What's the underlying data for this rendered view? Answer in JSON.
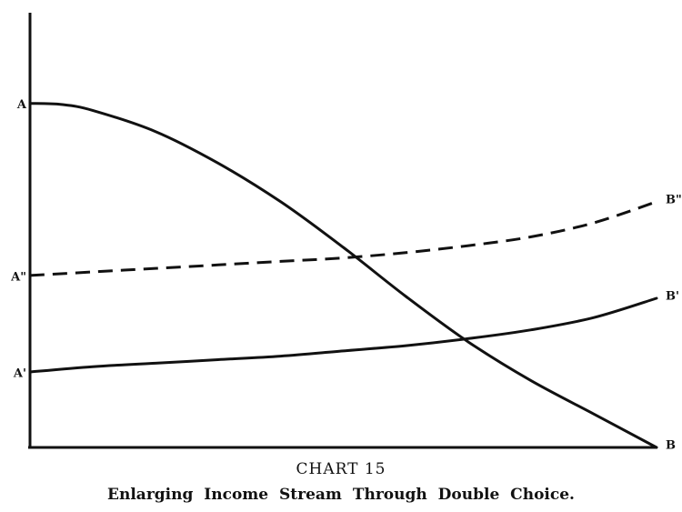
{
  "caption": {
    "number": "CHART 15",
    "title": "Enlarging Income Stream Through Double Choice."
  },
  "chart_data": {
    "type": "line",
    "title": "Enlarging Income Stream Through Double Choice.",
    "xlabel": "",
    "ylabel": "",
    "grid": false,
    "legend": "none",
    "xlim": [
      0,
      1
    ],
    "ylim": [
      0,
      1
    ],
    "series": [
      {
        "start_label": "A",
        "end_label": "B",
        "style": "solid",
        "points": [
          [
            0,
            0.98
          ],
          [
            0.05,
            0.977
          ],
          [
            0.1,
            0.96
          ],
          [
            0.2,
            0.9
          ],
          [
            0.3,
            0.81
          ],
          [
            0.4,
            0.7
          ],
          [
            0.5,
            0.57
          ],
          [
            0.6,
            0.43
          ],
          [
            0.7,
            0.3
          ],
          [
            0.8,
            0.19
          ],
          [
            0.9,
            0.095
          ],
          [
            1.0,
            0.0
          ]
        ]
      },
      {
        "start_label": "A\"",
        "end_label": "B\"",
        "style": "dashed",
        "points": [
          [
            0,
            0.49
          ],
          [
            0.1,
            0.5
          ],
          [
            0.2,
            0.51
          ],
          [
            0.3,
            0.52
          ],
          [
            0.4,
            0.53
          ],
          [
            0.5,
            0.54
          ],
          [
            0.6,
            0.555
          ],
          [
            0.7,
            0.575
          ],
          [
            0.8,
            0.6
          ],
          [
            0.9,
            0.64
          ],
          [
            1.0,
            0.7
          ]
        ]
      },
      {
        "start_label": "A'",
        "end_label": "B'",
        "style": "solid",
        "points": [
          [
            0,
            0.215
          ],
          [
            0.1,
            0.23
          ],
          [
            0.2,
            0.24
          ],
          [
            0.3,
            0.25
          ],
          [
            0.4,
            0.26
          ],
          [
            0.5,
            0.275
          ],
          [
            0.6,
            0.29
          ],
          [
            0.7,
            0.31
          ],
          [
            0.8,
            0.335
          ],
          [
            0.9,
            0.37
          ],
          [
            1.0,
            0.425
          ]
        ]
      }
    ]
  }
}
